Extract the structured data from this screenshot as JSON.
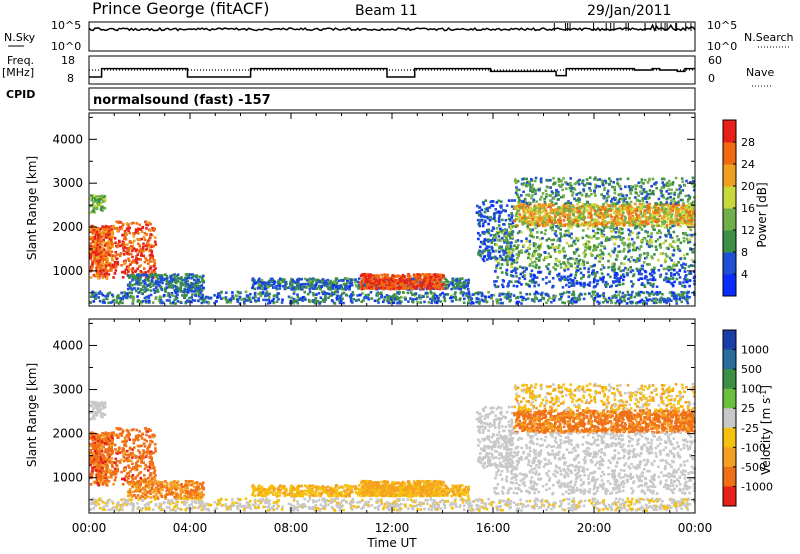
{
  "header": {
    "station": "Prince George (fitACF)",
    "beam": "Beam 11",
    "date": "29/Jan/2011"
  },
  "panel_nsky": {
    "left_label": "N.Sky",
    "right_label": "N.Search",
    "left_ticks": [
      "10^5",
      "10^0"
    ],
    "right_ticks": [
      "10^5",
      "10^0"
    ]
  },
  "panel_freq": {
    "left_label_1": "Freq.",
    "left_label_2": "[MHz]",
    "right_label": "Nave",
    "left_ticks": [
      "18",
      "8"
    ],
    "right_ticks": [
      "60",
      "0"
    ],
    "cpid_label": "CPID",
    "cpid_text": "normalsound (fast) -157",
    "freq_steps": [
      [
        0,
        0.25
      ],
      [
        0.5,
        0.55
      ],
      [
        3.9,
        0.25
      ],
      [
        6.4,
        0.55
      ],
      [
        11.8,
        0.25
      ],
      [
        12.9,
        0.55
      ],
      [
        15.9,
        0.45
      ],
      [
        18.5,
        0.3
      ],
      [
        18.9,
        0.55
      ],
      [
        19.8,
        0.55
      ],
      [
        21.6,
        0.5
      ],
      [
        22.3,
        0.55
      ],
      [
        22.6,
        0.5
      ],
      [
        23.3,
        0.45
      ],
      [
        23.6,
        0.55
      ]
    ]
  },
  "chart_data": [
    {
      "type": "heatmap",
      "name": "power",
      "ylabel": "Slant Range [km]",
      "yticks": [
        "1000",
        "2000",
        "3000",
        "4000"
      ],
      "ylim": [
        200,
        4600
      ],
      "xlim": [
        0,
        24
      ],
      "colorbar_label": "Power [dB]",
      "colorbar_ticks": [
        "4",
        "8",
        "12",
        "16",
        "20",
        "24",
        "28"
      ],
      "colors": [
        "#0a2cff",
        "#1f4fd4",
        "#3c8f46",
        "#6fae4a",
        "#c8d83a",
        "#f0a020",
        "#f06a12",
        "#e8201a"
      ]
    },
    {
      "type": "heatmap",
      "name": "velocity",
      "ylabel": "Slant Range [km]",
      "yticks": [
        "1000",
        "2000",
        "3000",
        "4000"
      ],
      "ylim": [
        200,
        4600
      ],
      "xlim": [
        0,
        24
      ],
      "xlabel": "Time UT",
      "xticks": [
        "00:00",
        "04:00",
        "08:00",
        "12:00",
        "16:00",
        "20:00",
        "00:00"
      ],
      "colorbar_label": "Velocity [m s",
      "colorbar_sup": "-1",
      "colorbar_ticks": [
        "1000",
        "500",
        "100",
        "25",
        "-25",
        "-100",
        "-500",
        "-1000"
      ],
      "colors": [
        "#1a3ea8",
        "#2a6c9a",
        "#3d8f48",
        "#6cc040",
        "#c8c8c8",
        "#f5c010",
        "#f5a020",
        "#f07018",
        "#e8201a"
      ]
    }
  ]
}
